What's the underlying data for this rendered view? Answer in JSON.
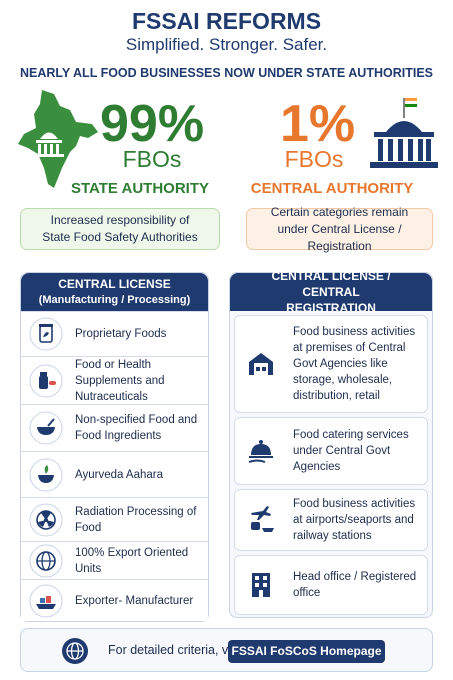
{
  "header": {
    "title": "FSSAI REFORMS",
    "subtitle": "Simplified. Stronger. Safer.",
    "banner": "NEARLY ALL FOOD BUSINESSES NOW UNDER STATE AUTHORITIES"
  },
  "stats": [
    {
      "value": "99%",
      "unit": "FBOs",
      "authority": "STATE AUTHORITY",
      "note": "Increased responsibility of State Food Safety Authorities"
    },
    {
      "value": "1%",
      "unit": "FBOs",
      "authority": "CENTRAL AUTHORITY",
      "note": "Certain categories remain under Central License / Registration"
    }
  ],
  "panels": [
    {
      "title": "CENTRAL LICENSE",
      "subtitle": "(Manufacturing / Processing)",
      "items": [
        "Proprietary Foods",
        "Food or Health Supplements and Nutraceuticals",
        "Non-specified Food and Food Ingredients",
        "Ayurveda Aahara",
        "Radiation Processing of Food",
        "100% Export Oriented Units",
        "Exporter- Manufacturer"
      ]
    },
    {
      "title": "CENTRAL LICENSE / CENTRAL REGISTRATION",
      "items": [
        "Food business activities at premises of Central Govt Agencies like storage, wholesale, distribution, retail",
        "Food catering services under Central Govt Agencies",
        "Food business activities at airports/seaports and railway stations",
        "Head office / Registered office"
      ]
    }
  ],
  "footer": {
    "text": "For detailed criteria, visit",
    "button": "FSSAI FoSCoS Homepage"
  }
}
